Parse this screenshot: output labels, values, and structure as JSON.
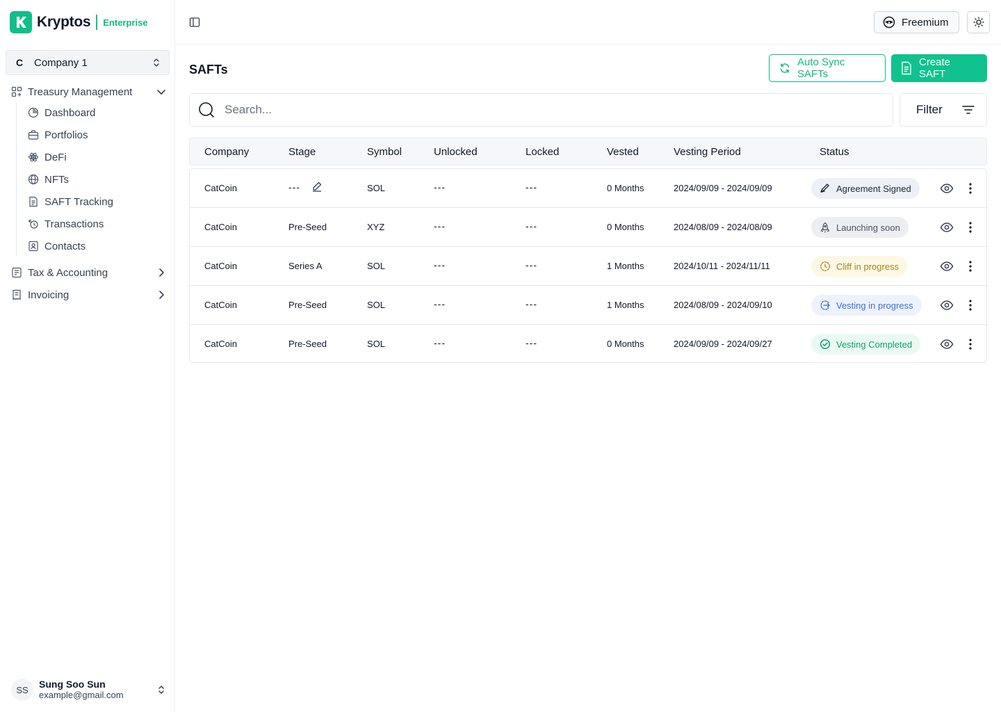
{
  "brand": {
    "name": "Kryptos",
    "tag": "Enterprise",
    "color": "#10b981"
  },
  "company_selector": {
    "badge": "C",
    "name": "Company 1"
  },
  "nav": {
    "treasury": {
      "label": "Treasury Management",
      "icon": "grid-icon"
    },
    "items": [
      {
        "label": "Dashboard",
        "icon": "pie-chart-icon"
      },
      {
        "label": "Portfolios",
        "icon": "briefcase-icon"
      },
      {
        "label": "DeFi",
        "icon": "atom-icon"
      },
      {
        "label": "NFTs",
        "icon": "globe-icon"
      },
      {
        "label": "SAFT Tracking",
        "icon": "document-icon"
      },
      {
        "label": "Transactions",
        "icon": "transactions-icon"
      },
      {
        "label": "Contacts",
        "icon": "contact-card-icon"
      }
    ],
    "tax": {
      "label": "Tax & Accounting",
      "icon": "ledger-icon"
    },
    "invoicing": {
      "label": "Invoicing",
      "icon": "invoice-icon"
    }
  },
  "user": {
    "initials": "SS",
    "name": "Sung Soo Sun",
    "email": "example@gmail.com"
  },
  "topbar": {
    "plan_label": "Freemium"
  },
  "page": {
    "title": "SAFTs",
    "auto_sync_label": "Auto Sync SAFTs",
    "create_label": "Create SAFT",
    "search_placeholder": "Search...",
    "filter_label": "Filter"
  },
  "table": {
    "columns": [
      "Company",
      "Stage",
      "Symbol",
      "Unlocked",
      "Locked",
      "Vested",
      "Vesting Period",
      "Status"
    ],
    "rows": [
      {
        "company": "CatCoin",
        "stage": "---",
        "symbol": "SOL",
        "unlocked": "---",
        "locked": "---",
        "vested": "0 Months",
        "period": "2024/09/09 - 2024/09/09",
        "status": "Agreement Signed",
        "status_kind": "signed"
      },
      {
        "company": "CatCoin",
        "stage": "Pre-Seed",
        "symbol": "XYZ",
        "unlocked": "---",
        "locked": "---",
        "vested": "0 Months",
        "period": "2024/08/09 - 2024/08/09",
        "status": "Launching soon",
        "status_kind": "launching"
      },
      {
        "company": "CatCoin",
        "stage": "Series A",
        "symbol": "SOL",
        "unlocked": "---",
        "locked": "---",
        "vested": "1 Months",
        "period": "2024/10/11 - 2024/11/11",
        "status": "Cliff in progress",
        "status_kind": "cliff"
      },
      {
        "company": "CatCoin",
        "stage": "Pre-Seed",
        "symbol": "SOL",
        "unlocked": "---",
        "locked": "---",
        "vested": "1 Months",
        "period": "2024/08/09 - 2024/09/10",
        "status": "Vesting in progress",
        "status_kind": "vesting"
      },
      {
        "company": "CatCoin",
        "stage": "Pre-Seed",
        "symbol": "SOL",
        "unlocked": "---",
        "locked": "---",
        "vested": "0 Months",
        "period": "2024/09/09 - 2024/09/27",
        "status": "Vesting Completed",
        "status_kind": "completed"
      }
    ]
  },
  "status_colors": {
    "signed": {
      "bg": "#eef0f7",
      "fg": "#1f2937"
    },
    "launching": {
      "bg": "#eceef1",
      "fg": "#4b5563"
    },
    "cliff": {
      "bg": "#fdf8e4",
      "fg": "#a1881f"
    },
    "vesting": {
      "bg": "#eef2fd",
      "fg": "#3b6fd8"
    },
    "completed": {
      "bg": "#eafaf3",
      "fg": "#0f9f6e"
    }
  }
}
